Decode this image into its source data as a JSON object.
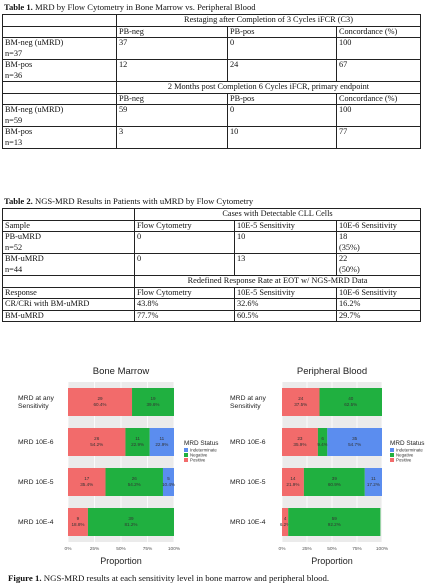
{
  "table1": {
    "label": "Table 1.",
    "caption": "MRD by Flow Cytometry in Bone Marrow vs. Peripheral Blood",
    "section1": {
      "title": "Restaging after Completion of 3 Cycles iFCR (C3)",
      "headers": [
        "PB-neg",
        "PB-pos",
        "Concordance (%)"
      ],
      "rows": [
        {
          "label1": "BM-neg (uMRD)",
          "label2": "n=37",
          "c1": "37",
          "c2": "0",
          "c3": "100"
        },
        {
          "label1": "BM-pos",
          "label2": "n=36",
          "c1": "12",
          "c2": "24",
          "c3": "67"
        }
      ]
    },
    "section2": {
      "title": "2 Months post Completion 6 Cycles iFCR, primary endpoint",
      "headers": [
        "PB-neg",
        "PB-pos",
        "Concordance (%)"
      ],
      "rows": [
        {
          "label1": "BM-neg (uMRD)",
          "label2": "n=59",
          "c1": "59",
          "c2": "0",
          "c3": "100"
        },
        {
          "label1": "BM-pos",
          "label2": "n=13",
          "c1": "3",
          "c2": "10",
          "c3": "77"
        }
      ]
    }
  },
  "table2": {
    "label": "Table 2.",
    "caption": "NGS-MRD Results in Patients with uMRD by Flow Cytometry",
    "span_header": "Cases with Detectable CLL Cells",
    "headers": [
      "Sample",
      "Flow Cytometry",
      "10E-5 Sensitivity",
      "10E-6 Sensitivity"
    ],
    "rows": [
      {
        "label1": "PB-uMRD",
        "label2": "n=52",
        "c1": "0",
        "c2": "10",
        "c3a": "18",
        "c3b": "(35%)"
      },
      {
        "label1": "BM-uMRD",
        "label2": "n=44",
        "c1": "0",
        "c2": "13",
        "c3a": "22",
        "c3b": "(50%)"
      }
    ],
    "span_header2": "Redefined Response Rate at EOT w/ NGS-MRD Data",
    "headers2": [
      "Response",
      "Flow Cytometry",
      "10E-5 Sensitivity",
      "10E-6 Sensitivity"
    ],
    "rows2": [
      {
        "label": "CR/CRi with BM-uMRD",
        "c1": "43.8%",
        "c2": "32.6%",
        "c3": "16.2%"
      },
      {
        "label": "BM-uMRD",
        "c1": "77.7%",
        "c2": "60.5%",
        "c3": "29.7%"
      }
    ]
  },
  "figure": {
    "label": "Figure 1.",
    "caption": "NGS-MRD results at each sensitivity level in bone marrow and peripheral blood.",
    "colors": {
      "positive": "#f26b6b",
      "negative": "#20b040",
      "indeterminate": "#5b8def"
    },
    "legend_title": "MRD Status",
    "legend_items": [
      "Indeterminate",
      "Negative",
      "Positive"
    ],
    "xlabel": "Proportion",
    "ticks": [
      "0%",
      "25%",
      "50%",
      "75%",
      "100%"
    ]
  },
  "chart_data": [
    {
      "type": "bar",
      "title": "Bone Marrow",
      "xlabel": "Proportion",
      "categories": [
        "MRD at any Sensitivity",
        "MRD 10E-6",
        "MRD 10E-5",
        "MRD 10E-4"
      ],
      "series": [
        {
          "name": "Positive",
          "counts": [
            "29",
            "26",
            "17",
            "9"
          ],
          "labels": [
            "60.4%",
            "54.2%",
            "35.4%",
            "18.8%"
          ],
          "values": [
            60.4,
            54.2,
            35.4,
            18.8
          ]
        },
        {
          "name": "Negative",
          "counts": [
            "19",
            "11",
            "26",
            "39"
          ],
          "labels": [
            "39.6%",
            "22.9%",
            "54.2%",
            "81.2%"
          ],
          "values": [
            39.6,
            22.9,
            54.2,
            81.2
          ]
        },
        {
          "name": "Indeterminate",
          "counts": [
            "",
            "11",
            "5",
            ""
          ],
          "labels": [
            "",
            "22.9%",
            "10.4%",
            ""
          ],
          "values": [
            0,
            22.9,
            10.4,
            0
          ]
        }
      ]
    },
    {
      "type": "bar",
      "title": "Peripheral Blood",
      "xlabel": "Proportion",
      "categories": [
        "MRD at any Sensitivity",
        "MRD 10E-6",
        "MRD 10E-5",
        "MRD 10E-4"
      ],
      "series": [
        {
          "name": "Positive",
          "counts": [
            "24",
            "23",
            "14",
            "4"
          ],
          "labels": [
            "37.5%",
            "35.9%",
            "21.9%",
            "6.2%"
          ],
          "values": [
            37.5,
            35.9,
            21.9,
            6.2
          ]
        },
        {
          "name": "Negative",
          "counts": [
            "40",
            "6",
            "39",
            "59"
          ],
          "labels": [
            "62.5%",
            "9.4%",
            "60.9%",
            "92.2%"
          ],
          "values": [
            62.5,
            9.4,
            60.9,
            92.2
          ]
        },
        {
          "name": "Indeterminate",
          "counts": [
            "",
            "35",
            "11",
            ""
          ],
          "labels": [
            "",
            "54.7%",
            "17.2%",
            ""
          ],
          "values": [
            0,
            54.7,
            17.2,
            0
          ]
        }
      ]
    }
  ]
}
